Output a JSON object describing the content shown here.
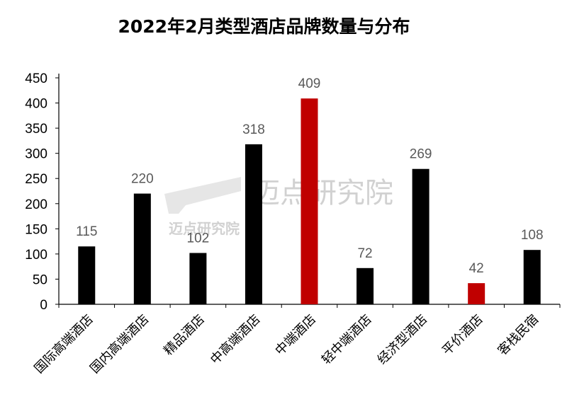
{
  "chart_data": {
    "type": "bar",
    "title": "2022年2月类型酒店品牌数量与分布",
    "xlabel": "",
    "ylabel": "",
    "categories": [
      "国际高端酒店",
      "国内高端酒店",
      "精品酒店",
      "中高端酒店",
      "中端酒店",
      "轻中端酒店",
      "经济型酒店",
      "平价酒店",
      "客栈民宿"
    ],
    "values": [
      115,
      220,
      102,
      318,
      409,
      72,
      269,
      42,
      108
    ],
    "ylim": [
      0,
      450
    ],
    "yticks": [
      0,
      50,
      100,
      150,
      200,
      250,
      300,
      350,
      400,
      450
    ],
    "colors": [
      "#000000",
      "#000000",
      "#000000",
      "#000000",
      "#c00000",
      "#000000",
      "#000000",
      "#c00000",
      "#000000"
    ],
    "data_label_color": "#595959",
    "grid": false,
    "legend": "none"
  },
  "watermark": {
    "small": "迈点研究院",
    "large": "迈点研究院"
  }
}
